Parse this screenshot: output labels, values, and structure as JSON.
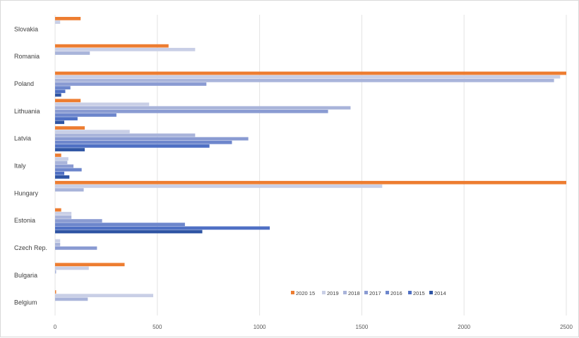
{
  "chart_data": {
    "type": "bar",
    "orientation": "horizontal",
    "categories": [
      "Slovakia",
      "Romania",
      "Poland",
      "Lithuania",
      "Latvia",
      "Italy",
      "Hungary",
      "Estonia",
      "Czech Rep.",
      "Bulgaria",
      "Belgium"
    ],
    "series": [
      {
        "name": "2020 15",
        "color": "#ed7d31",
        "values": [
          125,
          555,
          2500,
          125,
          145,
          30,
          2500,
          30,
          0,
          340,
          5
        ]
      },
      {
        "name": "2019",
        "color": "#c9cfe6",
        "values": [
          25,
          685,
          2470,
          460,
          365,
          65,
          1600,
          80,
          25,
          165,
          480
        ]
      },
      {
        "name": "2018",
        "color": "#a9b4da",
        "values": [
          0,
          170,
          2440,
          1445,
          685,
          60,
          140,
          80,
          25,
          5,
          160
        ]
      },
      {
        "name": "2017",
        "color": "#8a9bd2",
        "values": [
          0,
          0,
          740,
          1335,
          945,
          90,
          0,
          230,
          205,
          0,
          0
        ]
      },
      {
        "name": "2016",
        "color": "#6d86cc",
        "values": [
          0,
          0,
          75,
          300,
          865,
          130,
          0,
          635,
          0,
          0,
          0
        ]
      },
      {
        "name": "2015",
        "color": "#4f70c4",
        "values": [
          0,
          0,
          50,
          110,
          755,
          45,
          0,
          1050,
          0,
          0,
          0
        ]
      },
      {
        "name": "2014",
        "color": "#2f55a4",
        "values": [
          0,
          0,
          30,
          45,
          145,
          70,
          0,
          720,
          0,
          0,
          0
        ]
      }
    ],
    "xticks": [
      "0",
      "500",
      "1000",
      "1500",
      "2000",
      "2500"
    ],
    "xlim": [
      0,
      2500
    ],
    "grid": "vertical",
    "legend": "bottom-right"
  }
}
